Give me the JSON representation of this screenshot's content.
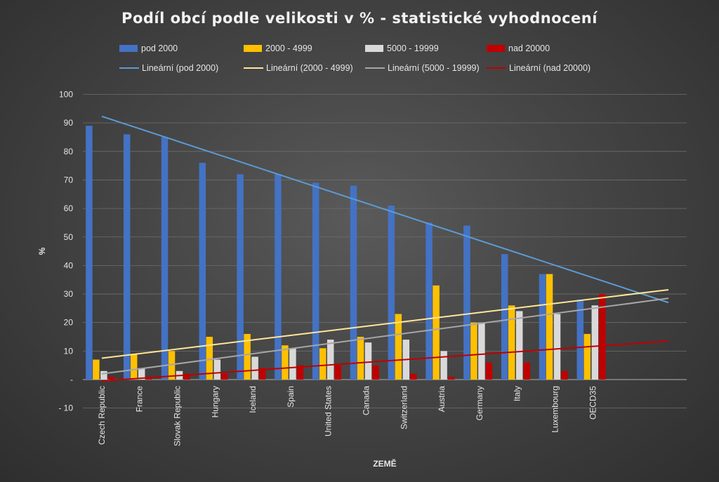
{
  "chart_data": {
    "type": "bar",
    "title": "Podíl obcí podle velikosti v % - statistické vyhodnocení",
    "xlabel": "ZEMĚ",
    "ylabel": "%",
    "ylim": [
      -10,
      100
    ],
    "yticks": [
      -10,
      0,
      10,
      20,
      30,
      40,
      50,
      60,
      70,
      80,
      90,
      100
    ],
    "ytick_labels": [
      "- 10",
      "-",
      "10",
      "20",
      "30",
      "40",
      "50",
      "60",
      "70",
      "80",
      "90",
      "100"
    ],
    "grid": true,
    "legend_position": "top",
    "categories": [
      "Czech Republic",
      "France",
      "Slovak Republic",
      "Hungary",
      "Iceland",
      "Spain",
      "United States",
      "Canada",
      "Switzerland",
      "Austria",
      "Germany",
      "Italy",
      "Luxembourg",
      "OECD35"
    ],
    "series": [
      {
        "name": "pod 2000",
        "color": "#4472c4",
        "values": [
          89,
          86,
          85,
          76,
          72,
          72,
          69,
          68,
          61,
          55,
          54,
          44,
          37,
          28
        ]
      },
      {
        "name": "2000 - 4999",
        "color": "#ffc000",
        "values": [
          7,
          9,
          10,
          15,
          16,
          12,
          11,
          15,
          23,
          33,
          20,
          26,
          37,
          16
        ]
      },
      {
        "name": "5000 - 19999",
        "color": "#d9d9d9",
        "values": [
          3,
          4,
          3,
          7,
          8,
          11,
          14,
          13,
          14,
          10,
          20,
          24,
          23,
          26
        ]
      },
      {
        "name": "nad 20000",
        "color": "#c00000",
        "values": [
          1,
          1,
          2,
          2,
          4,
          5,
          5,
          5,
          2,
          1,
          6,
          6,
          3,
          30
        ]
      }
    ],
    "trendlines": [
      {
        "name": "Lineární (pod 2000)",
        "color": "#5b9bd5",
        "start": 92.3,
        "end": 27.0
      },
      {
        "name": "Lineární (2000 - 4999)",
        "color": "#ffe699",
        "start": 7.5,
        "end": 31.5
      },
      {
        "name": "Lineární (5000 - 19999)",
        "color": "#a6a6a6",
        "start": 2.0,
        "end": 28.5
      },
      {
        "name": "Lineární (nad 20000)",
        "color": "#c00000",
        "start": -0.5,
        "end": 13.5
      }
    ]
  }
}
